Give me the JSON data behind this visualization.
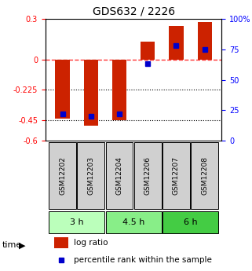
{
  "title": "GDS632 / 2226",
  "samples": [
    "GSM12202",
    "GSM12203",
    "GSM12204",
    "GSM12206",
    "GSM12207",
    "GSM12208"
  ],
  "log_ratios": [
    -0.44,
    -0.49,
    -0.45,
    0.13,
    0.25,
    0.28
  ],
  "percentile_ranks": [
    22,
    20,
    22,
    63,
    78,
    75
  ],
  "time_groups": [
    {
      "label": "3 h",
      "samples": [
        "GSM12202",
        "GSM12203"
      ],
      "color": "#aaffaa"
    },
    {
      "label": "4.5 h",
      "samples": [
        "GSM12204",
        "GSM12206"
      ],
      "color": "#66ee66"
    },
    {
      "label": "6 h",
      "samples": [
        "GSM12207",
        "GSM12208"
      ],
      "color": "#33cc33"
    }
  ],
  "ylim_left": [
    -0.6,
    0.3
  ],
  "ylim_right": [
    0,
    100
  ],
  "yticks_left": [
    -0.6,
    -0.45,
    -0.225,
    0,
    0.3
  ],
  "ytick_labels_left": [
    "-0.6",
    "-0.45",
    "-0.225",
    "0",
    "0.3"
  ],
  "yticks_right": [
    0,
    25,
    50,
    75,
    100
  ],
  "ytick_labels_right": [
    "0",
    "25",
    "50",
    "75",
    "100%"
  ],
  "bar_color": "#cc2200",
  "dot_color": "#0000cc",
  "hline_y": 0,
  "dotted_lines": [
    -0.225,
    -0.45
  ],
  "background_color": "#ffffff",
  "plot_bg": "#ffffff"
}
